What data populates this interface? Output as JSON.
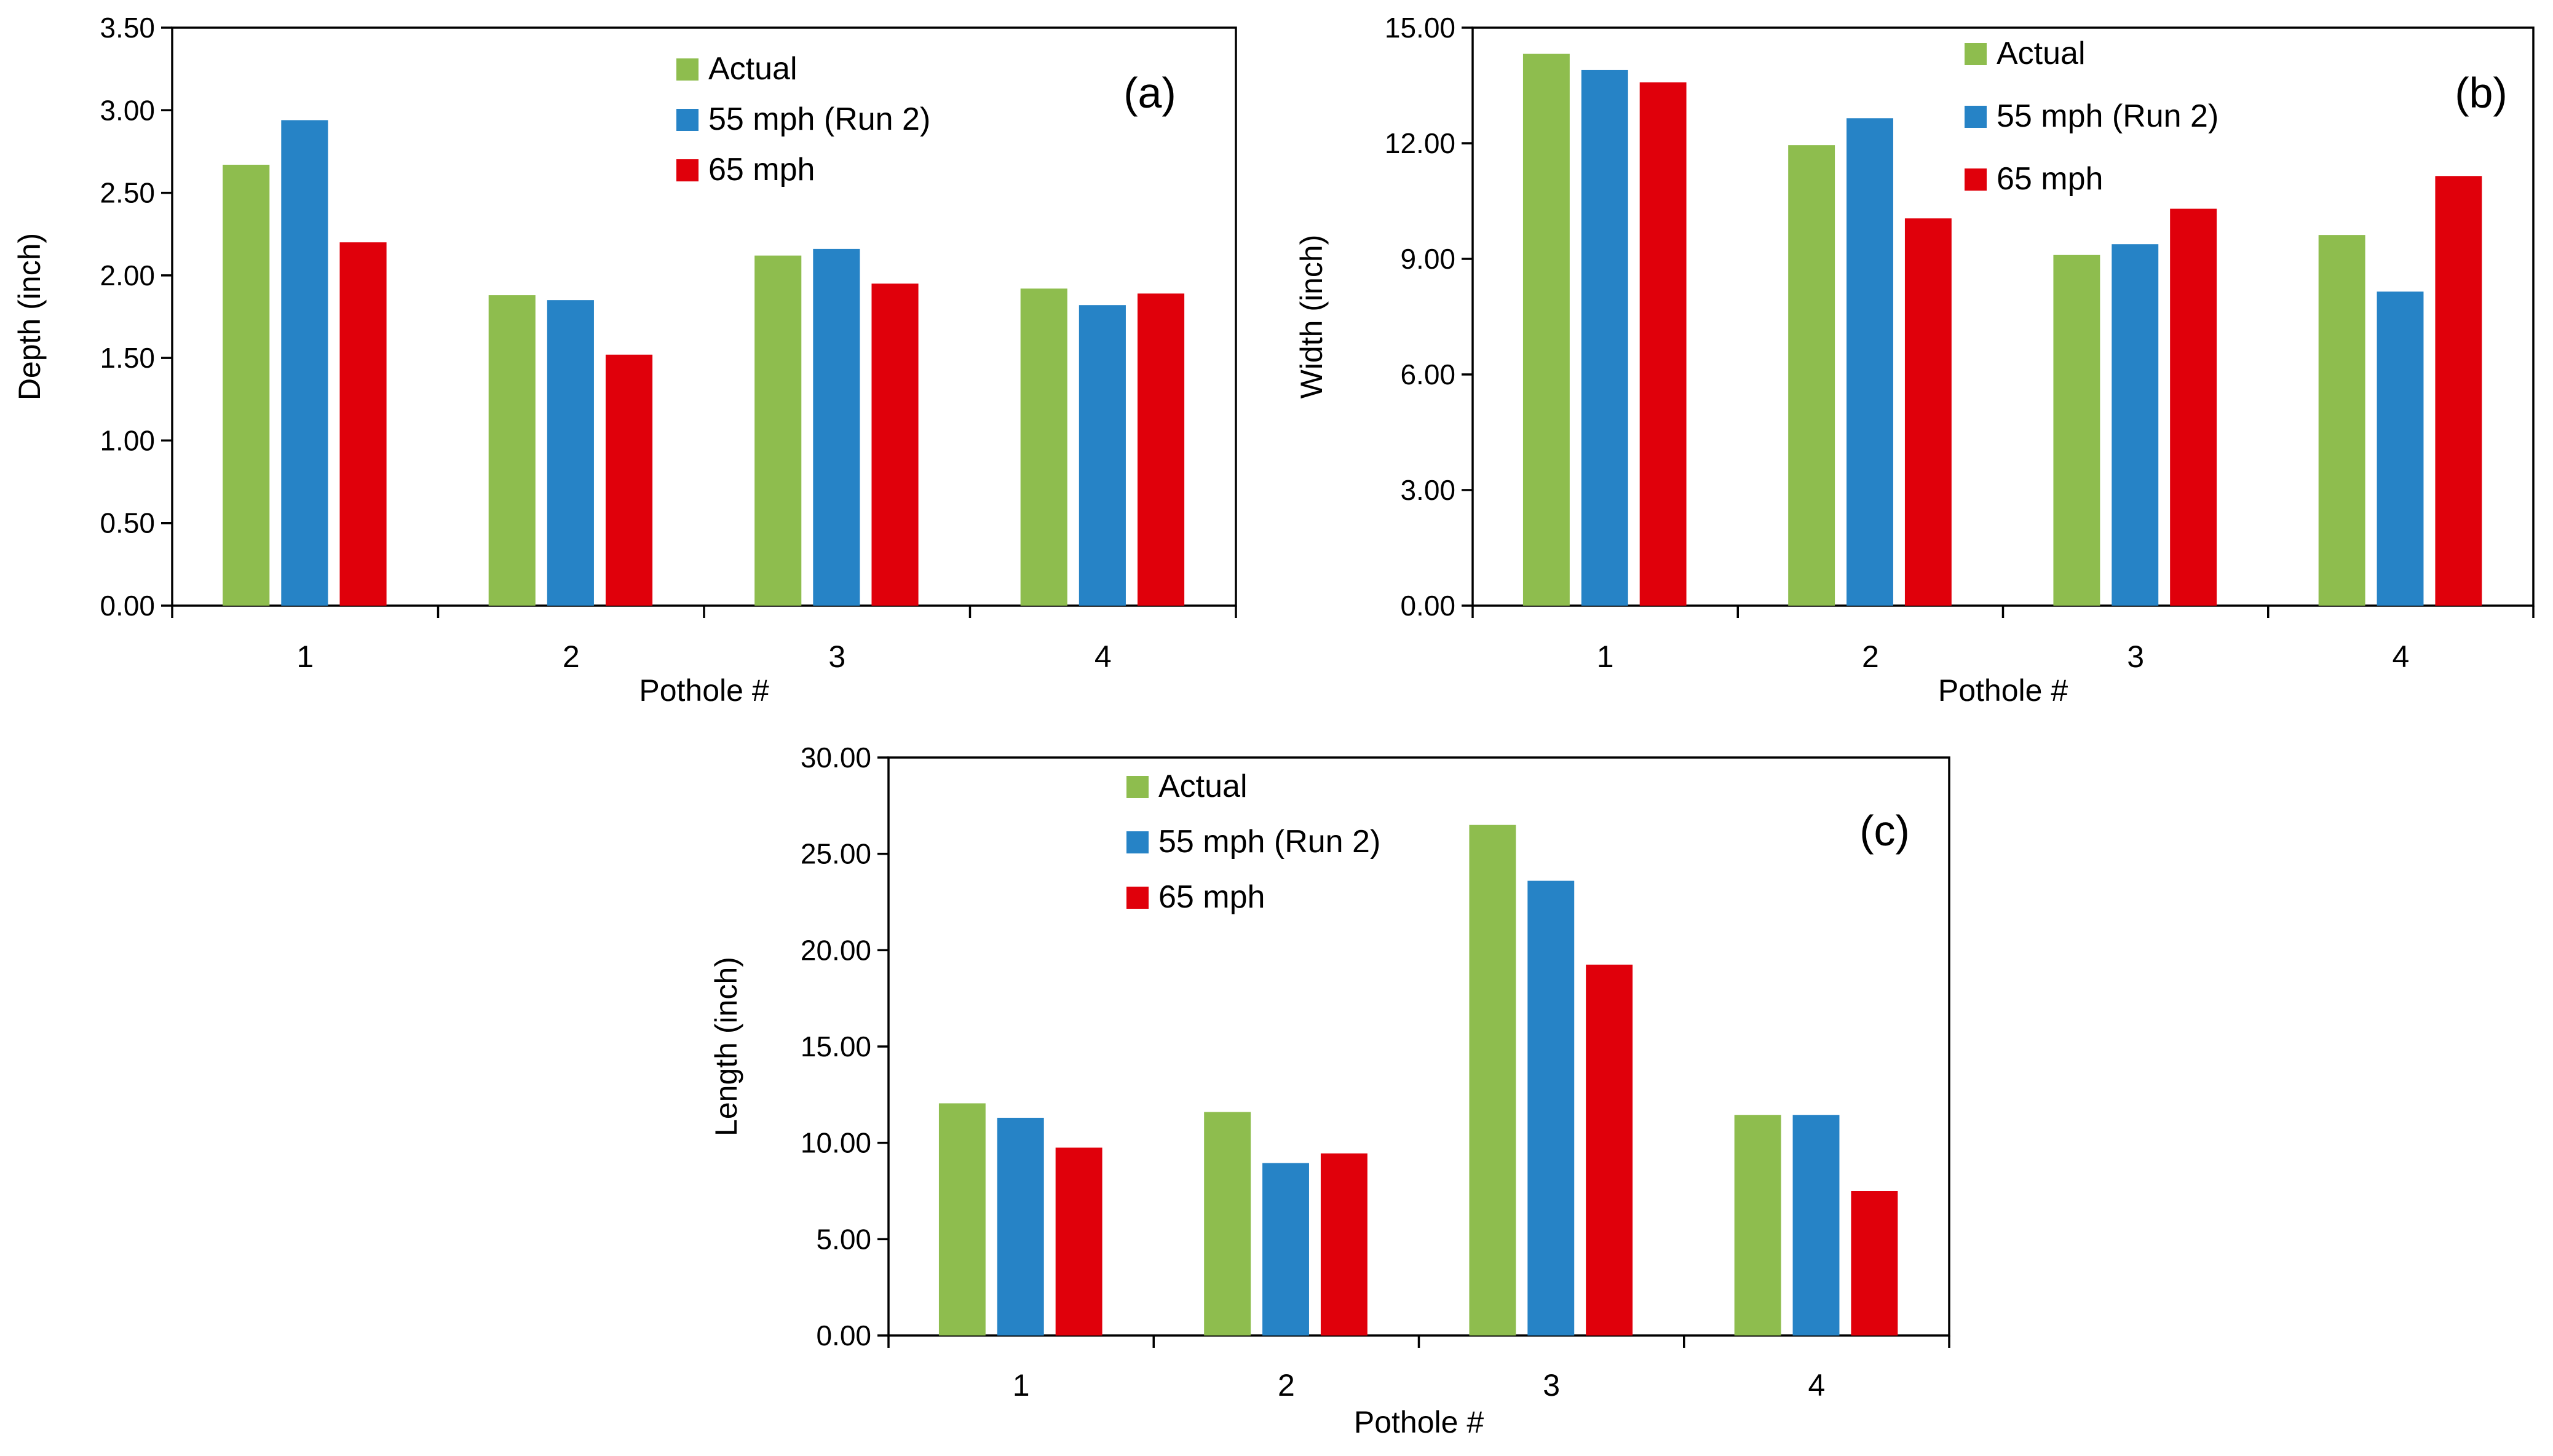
{
  "colors": {
    "actual": "#8EBD4E",
    "mph55": "#2683C6",
    "mph65": "#E0000B"
  },
  "chart_data": [
    {
      "type": "bar",
      "panel": "(a)",
      "categories": [
        "1",
        "2",
        "3",
        "4"
      ],
      "series": [
        {
          "name": "Actual",
          "values": [
            2.67,
            1.88,
            2.12,
            1.92
          ]
        },
        {
          "name": "55 mph (Run 2)",
          "values": [
            2.94,
            1.85,
            2.16,
            1.82
          ]
        },
        {
          "name": "65 mph",
          "values": [
            2.2,
            1.52,
            1.95,
            1.89
          ]
        }
      ],
      "xlabel": "Pothole #",
      "ylabel": "Depth (inch)",
      "ylim": [
        0,
        3.5
      ],
      "yticks": [
        "0.00",
        "0.50",
        "1.00",
        "1.50",
        "2.00",
        "2.50",
        "3.00",
        "3.50"
      ],
      "legend": "top-center"
    },
    {
      "type": "bar",
      "panel": "(b)",
      "categories": [
        "1",
        "2",
        "3",
        "4"
      ],
      "series": [
        {
          "name": "Actual",
          "values": [
            14.32,
            11.95,
            9.1,
            9.62
          ]
        },
        {
          "name": "55 mph (Run 2)",
          "values": [
            13.9,
            12.65,
            9.38,
            8.15
          ]
        },
        {
          "name": "65 mph",
          "values": [
            13.58,
            10.05,
            10.3,
            11.15
          ]
        }
      ],
      "xlabel": "Pothole #",
      "ylabel": "Width  (inch)",
      "ylim": [
        0,
        15
      ],
      "yticks": [
        "0.00",
        "3.00",
        "6.00",
        "9.00",
        "12.00",
        "15.00"
      ],
      "legend": "top-right"
    },
    {
      "type": "bar",
      "panel": "(c)",
      "categories": [
        "1",
        "2",
        "3",
        "4"
      ],
      "series": [
        {
          "name": "Actual",
          "values": [
            12.05,
            11.6,
            26.5,
            11.45
          ]
        },
        {
          "name": "55 mph (Run 2)",
          "values": [
            11.3,
            8.95,
            23.6,
            11.45
          ]
        },
        {
          "name": "65 mph",
          "values": [
            9.75,
            9.45,
            19.25,
            7.5
          ]
        }
      ],
      "xlabel": "Pothole #",
      "ylabel": "Length  (inch)",
      "ylim": [
        0,
        30
      ],
      "yticks": [
        "0.00",
        "5.00",
        "10.00",
        "15.00",
        "20.00",
        "25.00",
        "30.00"
      ],
      "legend": "top-left"
    }
  ]
}
